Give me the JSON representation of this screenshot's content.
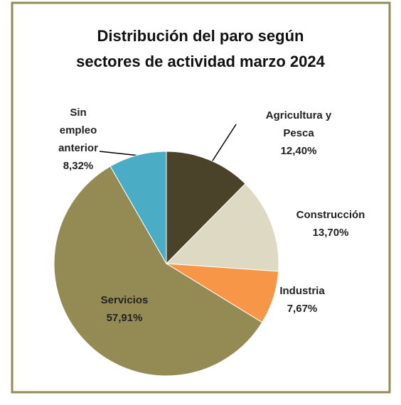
{
  "chart_data": {
    "type": "pie",
    "title": [
      "Distribución del paro según",
      "sectores de actividad  marzo 2024"
    ],
    "categories": [
      "Agricultura y Pesca",
      "Construcción",
      "Industria",
      "Servicios",
      "Sin empleo anterior"
    ],
    "values": [
      12.4,
      13.7,
      7.67,
      57.91,
      8.32
    ],
    "value_labels": [
      "12,40%",
      "13,70%",
      "7,67%",
      "57,91%",
      "8,32%"
    ],
    "colors": [
      "#4a4229",
      "#ddd9c3",
      "#f79646",
      "#948a54",
      "#4bacc6"
    ]
  }
}
